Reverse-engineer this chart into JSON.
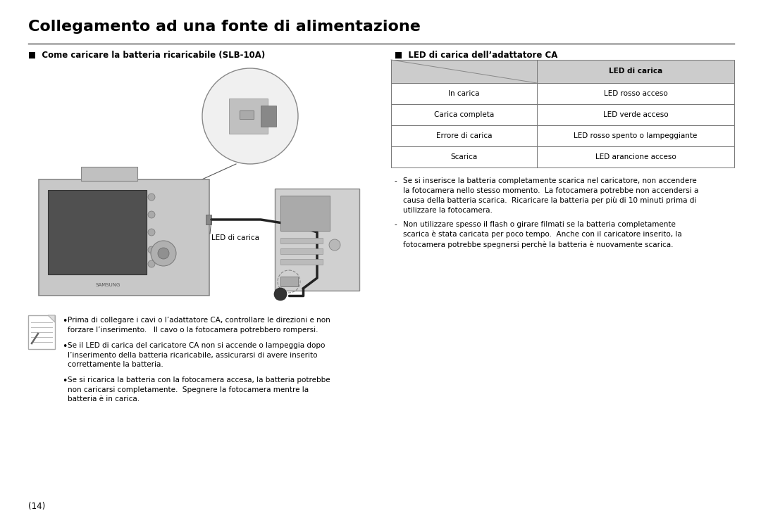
{
  "title": "Collegamento ad una fonte di alimentazione",
  "bg_color": "#ffffff",
  "text_color": "#000000",
  "title_fontsize": 16,
  "body_fontsize": 8.5,
  "small_fontsize": 7.5,
  "section_left_header": "■  Come caricare la batteria ricaricabile (SLB-10A)",
  "section_right_header": "■  LED di carica dell’adattatore CA",
  "table_header": "LED di carica",
  "table_rows": [
    [
      "In carica",
      "LED rosso acceso"
    ],
    [
      "Carica completa",
      "LED verde acceso"
    ],
    [
      "Errore di carica",
      "LED rosso spento o lampeggiante"
    ],
    [
      "Scarica",
      "LED arancione acceso"
    ]
  ],
  "table_header_bg": "#cccccc",
  "table_border_color": "#777777",
  "led_label": "LED di carica",
  "dash_bullets": [
    "Se si inserisce la batteria completamente scarica nel caricatore, non accendere\nla fotocamera nello stesso momento.  La fotocamera potrebbe non accendersi a\ncausa della batteria scarica.  Ricaricare la batteria per più di 10 minuti prima di\nutilizzare la fotocamera.",
    "Non utilizzare spesso il flash o girare filmati se la batteria completamente\nscarica è stata caricata per poco tempo.  Anche con il caricatore inserito, la\nfotocamera potrebbe spegnersi perchè la batteria è nuovamente scarica."
  ],
  "bottom_bullets": [
    "Prima di collegare i cavi o l’adattatore CA, controllare le direzioni e non\nforzare l’inserimento.   Il cavo o la fotocamera potrebbero rompersi.",
    "Se il LED di carica del caricatore CA non si accende o lampeggia dopo\nl’inserimento della batteria ricaricabile, assicurarsi di avere inserito\ncorrettamente la batteria.",
    "Se si ricarica la batteria con la fotocamera accesa, la batteria potrebbe\nnon caricarsi completamente.  Spegnere la fotocamera mentre la\nbatteria è in carica."
  ],
  "page_number": "(14)"
}
